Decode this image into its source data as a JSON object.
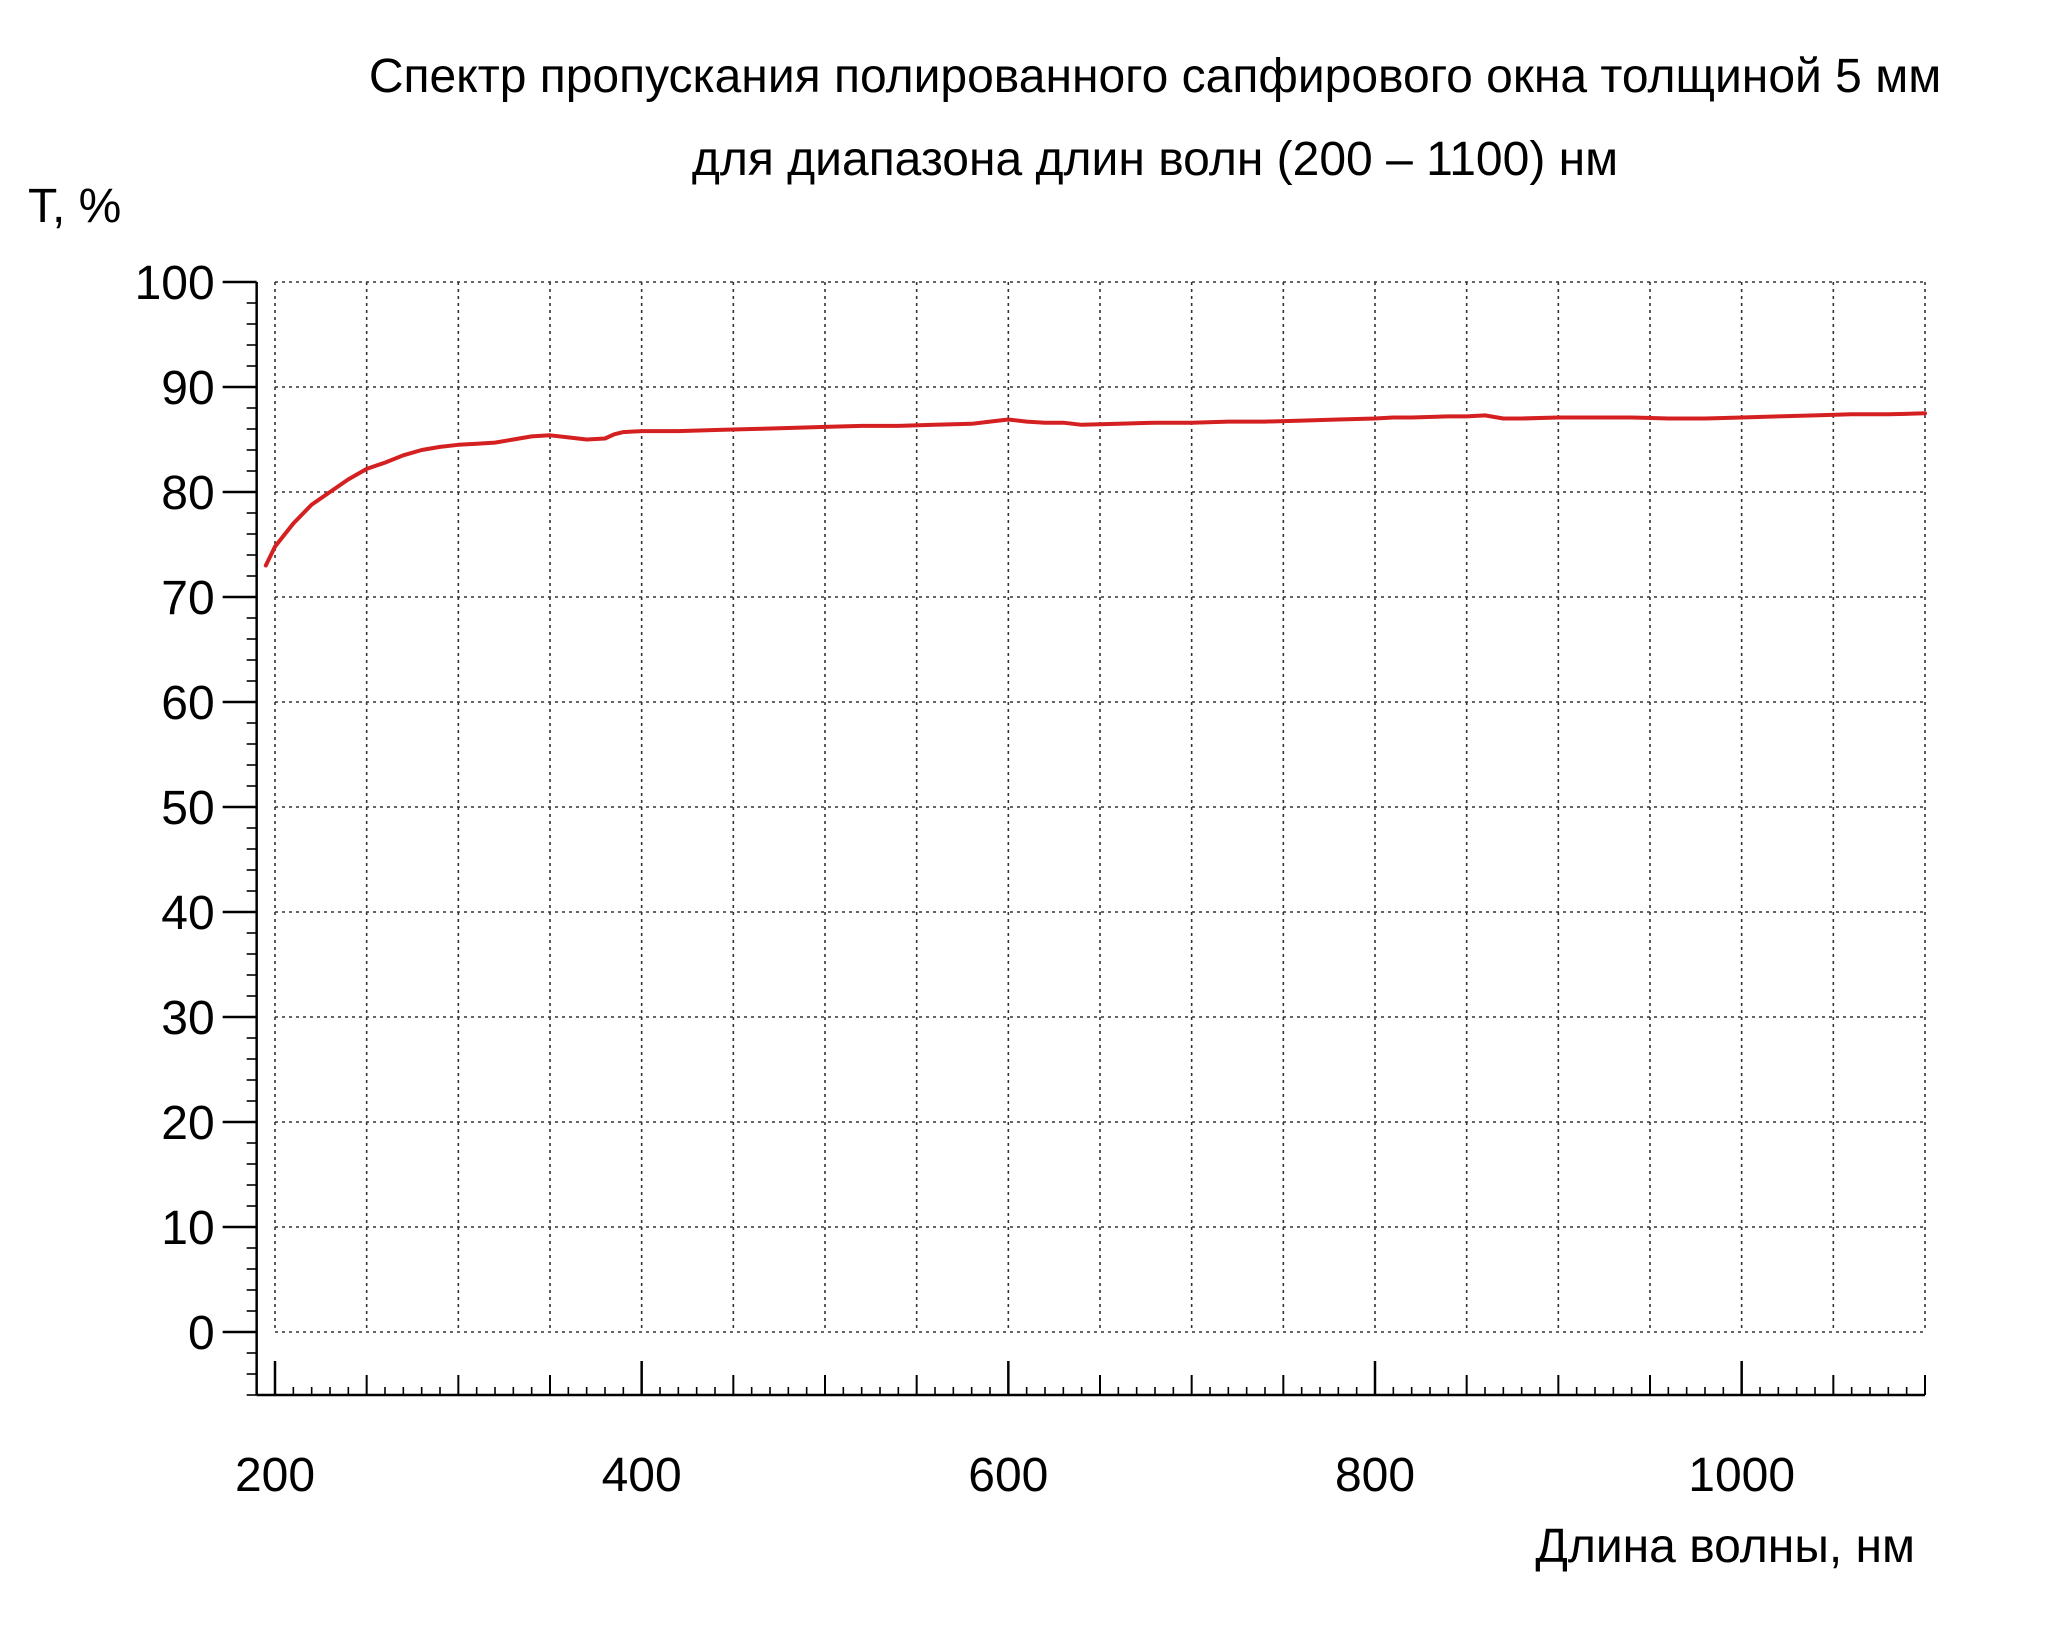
{
  "chart_data": {
    "type": "line",
    "title": "Спектр пропускания полированного сапфирового окна толщиной 5 мм",
    "subtitle": "для диапазона длин волн (200 – 1100) нм",
    "xlabel": "Длина волны, нм",
    "ylabel": "T, %",
    "xlim": [
      190,
      1100
    ],
    "ylim": [
      -6,
      100
    ],
    "grid": true,
    "grid_style": "dotted",
    "legend": "none",
    "x_ticks": [
      200,
      400,
      600,
      800,
      1000
    ],
    "x_tick_labels": [
      "200",
      "400",
      "600",
      "800",
      "1000"
    ],
    "y_ticks": [
      0,
      10,
      20,
      30,
      40,
      50,
      60,
      70,
      80,
      90,
      100
    ],
    "y_tick_labels": [
      "0",
      "10",
      "20",
      "30",
      "40",
      "50",
      "60",
      "70",
      "80",
      "90",
      "100"
    ],
    "x_grid": [
      200,
      250,
      300,
      350,
      400,
      450,
      500,
      550,
      600,
      650,
      700,
      750,
      800,
      850,
      900,
      950,
      1000,
      1050,
      1100
    ],
    "y_grid": [
      0,
      10,
      20,
      30,
      40,
      50,
      60,
      70,
      80,
      90,
      100
    ],
    "line_color": "#d42020",
    "series": [
      {
        "color": "#d42020",
        "x": [
          195,
          200,
          210,
          220,
          230,
          240,
          250,
          260,
          270,
          280,
          290,
          300,
          310,
          320,
          330,
          340,
          350,
          360,
          370,
          380,
          385,
          390,
          400,
          420,
          440,
          460,
          480,
          500,
          520,
          540,
          560,
          580,
          590,
          600,
          610,
          620,
          630,
          640,
          660,
          680,
          700,
          720,
          740,
          760,
          780,
          800,
          810,
          820,
          840,
          850,
          860,
          870,
          880,
          900,
          920,
          940,
          960,
          980,
          1000,
          1020,
          1040,
          1060,
          1080,
          1100
        ],
        "y": [
          73.0,
          74.8,
          77.0,
          78.8,
          80.0,
          81.2,
          82.2,
          82.8,
          83.5,
          84.0,
          84.3,
          84.5,
          84.6,
          84.7,
          85.0,
          85.3,
          85.4,
          85.2,
          85.0,
          85.1,
          85.5,
          85.7,
          85.8,
          85.8,
          85.9,
          86.0,
          86.1,
          86.2,
          86.3,
          86.3,
          86.4,
          86.5,
          86.7,
          86.9,
          86.7,
          86.6,
          86.6,
          86.4,
          86.5,
          86.6,
          86.6,
          86.7,
          86.7,
          86.8,
          86.9,
          87.0,
          87.1,
          87.1,
          87.2,
          87.2,
          87.3,
          87.0,
          87.0,
          87.1,
          87.1,
          87.1,
          87.0,
          87.0,
          87.1,
          87.2,
          87.3,
          87.4,
          87.4,
          87.5
        ]
      }
    ]
  }
}
